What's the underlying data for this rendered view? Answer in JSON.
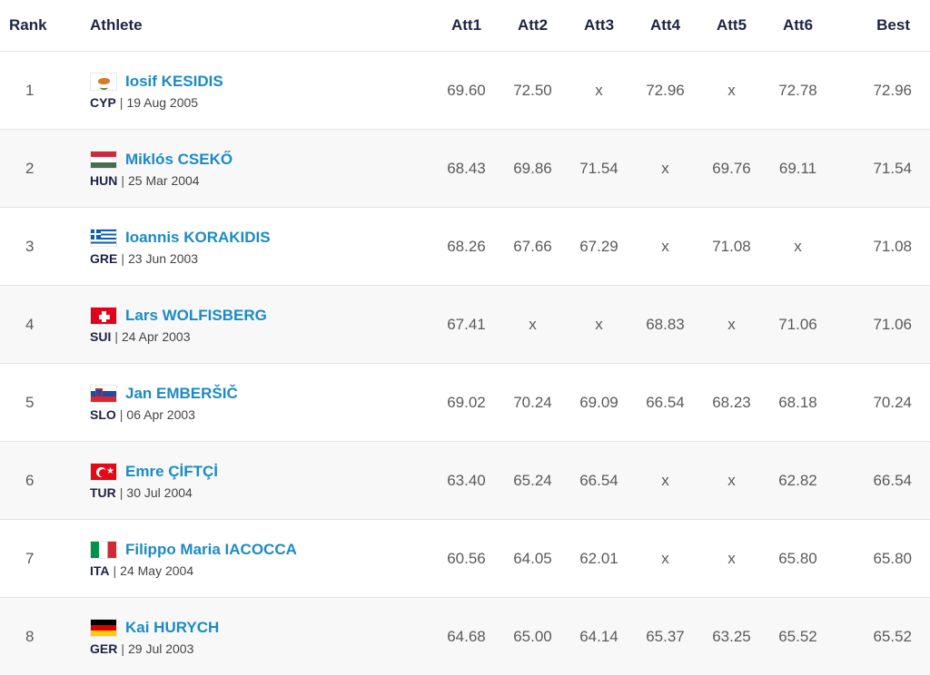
{
  "headers": {
    "rank": "Rank",
    "athlete": "Athlete",
    "att1": "Att1",
    "att2": "Att2",
    "att3": "Att3",
    "att4": "Att4",
    "att5": "Att5",
    "att6": "Att6",
    "best": "Best"
  },
  "rows": [
    {
      "rank": "1",
      "name": "Iosif KESIDIS",
      "country": "CYP",
      "flag_icon": "cyprus-flag-icon",
      "dob": "19 Aug 2005",
      "attempts": [
        "69.60",
        "72.50",
        "x",
        "72.96",
        "x",
        "72.78"
      ],
      "best": "72.96"
    },
    {
      "rank": "2",
      "name": "Miklós CSEKŐ",
      "country": "HUN",
      "flag_icon": "hungary-flag-icon",
      "dob": "25 Mar 2004",
      "attempts": [
        "68.43",
        "69.86",
        "71.54",
        "x",
        "69.76",
        "69.11"
      ],
      "best": "71.54"
    },
    {
      "rank": "3",
      "name": "Ioannis KORAKIDIS",
      "country": "GRE",
      "flag_icon": "greece-flag-icon",
      "dob": "23 Jun 2003",
      "attempts": [
        "68.26",
        "67.66",
        "67.29",
        "x",
        "71.08",
        "x"
      ],
      "best": "71.08"
    },
    {
      "rank": "4",
      "name": "Lars WOLFISBERG",
      "country": "SUI",
      "flag_icon": "switzerland-flag-icon",
      "dob": "24 Apr 2003",
      "attempts": [
        "67.41",
        "x",
        "x",
        "68.83",
        "x",
        "71.06"
      ],
      "best": "71.06"
    },
    {
      "rank": "5",
      "name": "Jan EMBERŠIČ",
      "country": "SLO",
      "flag_icon": "slovenia-flag-icon",
      "dob": "06 Apr 2003",
      "attempts": [
        "69.02",
        "70.24",
        "69.09",
        "66.54",
        "68.23",
        "68.18"
      ],
      "best": "70.24"
    },
    {
      "rank": "6",
      "name": "Emre ÇİFTÇİ",
      "country": "TUR",
      "flag_icon": "turkey-flag-icon",
      "dob": "30 Jul 2004",
      "attempts": [
        "63.40",
        "65.24",
        "66.54",
        "x",
        "x",
        "62.82"
      ],
      "best": "66.54"
    },
    {
      "rank": "7",
      "name": "Filippo Maria IACOCCA",
      "country": "ITA",
      "flag_icon": "italy-flag-icon",
      "dob": "24 May 2004",
      "attempts": [
        "60.56",
        "64.05",
        "62.01",
        "x",
        "x",
        "65.80"
      ],
      "best": "65.80"
    },
    {
      "rank": "8",
      "name": "Kai HURYCH",
      "country": "GER",
      "flag_icon": "germany-flag-icon",
      "dob": "29 Jul 2003",
      "attempts": [
        "64.68",
        "65.00",
        "64.14",
        "65.37",
        "63.25",
        "65.52"
      ],
      "best": "65.52"
    }
  ],
  "colors": {
    "header_text": "#1d2344",
    "link": "#1b8bc4",
    "cell_text": "#5a5a5a",
    "alt_row": "#f8f8f8",
    "divider": "#e3e3e3"
  }
}
